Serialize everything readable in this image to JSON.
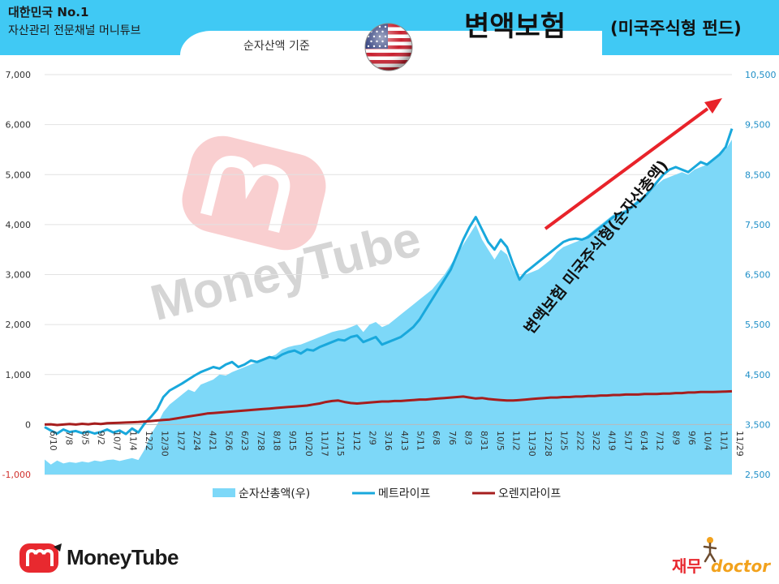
{
  "header": {
    "brand_line1": "대한민국 No.1",
    "brand_line2": "자산관리 전문채널 머니튜브",
    "title_main": "변액보험",
    "title_sub": "(미국주식형 펀드)",
    "subtitle": "순자산액 기준"
  },
  "colors": {
    "header_bg": "#40C9F4",
    "area": "#7DD8F8",
    "metlife": "#19A8DC",
    "orange": "#A61E1E",
    "arrow": "#E8232A",
    "right_axis_text": "#1F8FC7"
  },
  "icons": {
    "flag": "us-flag-icon",
    "logo": "moneytube-logo-icon",
    "watermark": "moneytube-watermark"
  },
  "watermark_text": "MoneyTube",
  "footer": {
    "logo_text": "MoneyTube",
    "doctor_kr": "재무",
    "doctor_en": "doctor"
  },
  "chart_data": {
    "type": "line",
    "left_axis": {
      "ticks": [
        "-1,000",
        "0",
        "1,000",
        "2,000",
        "3,000",
        "4,000",
        "5,000",
        "6,000",
        "7,000"
      ],
      "ylim": [
        -1000,
        7000
      ]
    },
    "right_axis": {
      "ticks": [
        "2,500",
        "3,500",
        "4,500",
        "5,500",
        "6,500",
        "7,500",
        "8,500",
        "9,500",
        "10,500"
      ],
      "ylim": [
        2500,
        10500
      ]
    },
    "x_labels": [
      "6/10",
      "7/8",
      "8/5",
      "9/2",
      "10/7",
      "11/4",
      "12/2",
      "12/30",
      "1/27",
      "2/24",
      "4/21",
      "5/26",
      "6/23",
      "7/28",
      "8/18",
      "9/15",
      "10/20",
      "11/17",
      "12/15",
      "1/12",
      "2/9",
      "3/16",
      "4/13",
      "5/11",
      "6/8",
      "7/6",
      "8/3",
      "8/31",
      "10/5",
      "11/2",
      "11/30",
      "12/28",
      "1/25",
      "2/22",
      "3/22",
      "4/19",
      "5/17",
      "6/14",
      "7/12",
      "8/9",
      "9/6",
      "10/4",
      "11/1",
      "11/29"
    ],
    "annotation": "변액보험 미국주식형(순자산총액)",
    "legend": [
      {
        "name": "순자산총액(우)",
        "kind": "area"
      },
      {
        "name": "메트라이프",
        "kind": "line"
      },
      {
        "name": "오렌지라이프",
        "kind": "line"
      }
    ],
    "series": [
      {
        "name": "순자산총액(우)",
        "axis": "right",
        "values": [
          2800,
          2700,
          2780,
          2720,
          2750,
          2730,
          2760,
          2740,
          2780,
          2760,
          2790,
          2800,
          2770,
          2800,
          2830,
          2790,
          3000,
          3300,
          3500,
          3750,
          3900,
          4000,
          4100,
          4200,
          4150,
          4300,
          4350,
          4400,
          4500,
          4480,
          4550,
          4600,
          4650,
          4700,
          4750,
          4800,
          4850,
          4900,
          5000,
          5050,
          5080,
          5100,
          5150,
          5200,
          5250,
          5300,
          5350,
          5380,
          5400,
          5450,
          5500,
          5350,
          5500,
          5550,
          5450,
          5500,
          5600,
          5700,
          5800,
          5900,
          6000,
          6100,
          6200,
          6350,
          6500,
          6700,
          6900,
          7100,
          7300,
          7500,
          7200,
          7000,
          6800,
          7000,
          6900,
          6600,
          6400,
          6500,
          6550,
          6600,
          6700,
          6800,
          6950,
          7050,
          7100,
          7150,
          7200,
          7300,
          7400,
          7500,
          7600,
          7700,
          7750,
          7800,
          7900,
          8000,
          8100,
          8200,
          8300,
          8400,
          8450,
          8500,
          8550,
          8500,
          8600,
          8650,
          8700,
          8800,
          8900,
          9000,
          9200
        ]
      },
      {
        "name": "메트라이프",
        "axis": "left",
        "values": [
          -50,
          -120,
          -180,
          -100,
          -150,
          -130,
          -170,
          -140,
          -180,
          -150,
          -100,
          -160,
          -120,
          -190,
          -80,
          -160,
          20,
          150,
          300,
          550,
          680,
          750,
          820,
          900,
          980,
          1050,
          1100,
          1150,
          1120,
          1200,
          1250,
          1150,
          1200,
          1280,
          1250,
          1300,
          1350,
          1320,
          1400,
          1450,
          1480,
          1420,
          1500,
          1480,
          1550,
          1600,
          1650,
          1700,
          1680,
          1750,
          1780,
          1650,
          1700,
          1750,
          1600,
          1650,
          1700,
          1750,
          1850,
          1950,
          2100,
          2300,
          2500,
          2700,
          2900,
          3100,
          3400,
          3700,
          3950,
          4150,
          3900,
          3650,
          3500,
          3700,
          3550,
          3200,
          2900,
          3050,
          3150,
          3250,
          3350,
          3450,
          3550,
          3650,
          3700,
          3720,
          3700,
          3750,
          3850,
          3950,
          4050,
          4150,
          4200,
          4250,
          4350,
          4450,
          4550,
          4700,
          4850,
          5000,
          5100,
          5150,
          5100,
          5050,
          5150,
          5250,
          5200,
          5300,
          5400,
          5550,
          5920
        ]
      },
      {
        "name": "오렌지라이프",
        "axis": "left",
        "values": [
          0,
          5,
          -10,
          0,
          10,
          0,
          15,
          5,
          20,
          10,
          25,
          30,
          35,
          40,
          45,
          50,
          60,
          70,
          80,
          90,
          100,
          120,
          140,
          160,
          180,
          200,
          220,
          230,
          240,
          250,
          260,
          270,
          280,
          290,
          300,
          310,
          320,
          330,
          340,
          350,
          360,
          370,
          380,
          400,
          420,
          450,
          470,
          480,
          450,
          430,
          420,
          430,
          440,
          450,
          460,
          460,
          470,
          470,
          480,
          490,
          500,
          500,
          510,
          520,
          530,
          540,
          550,
          560,
          540,
          520,
          530,
          510,
          500,
          490,
          480,
          480,
          490,
          500,
          510,
          520,
          530,
          540,
          540,
          550,
          550,
          560,
          560,
          570,
          570,
          580,
          580,
          590,
          590,
          600,
          600,
          600,
          610,
          610,
          610,
          620,
          620,
          630,
          630,
          640,
          640,
          650,
          650,
          650,
          655,
          660,
          665
        ]
      }
    ]
  }
}
